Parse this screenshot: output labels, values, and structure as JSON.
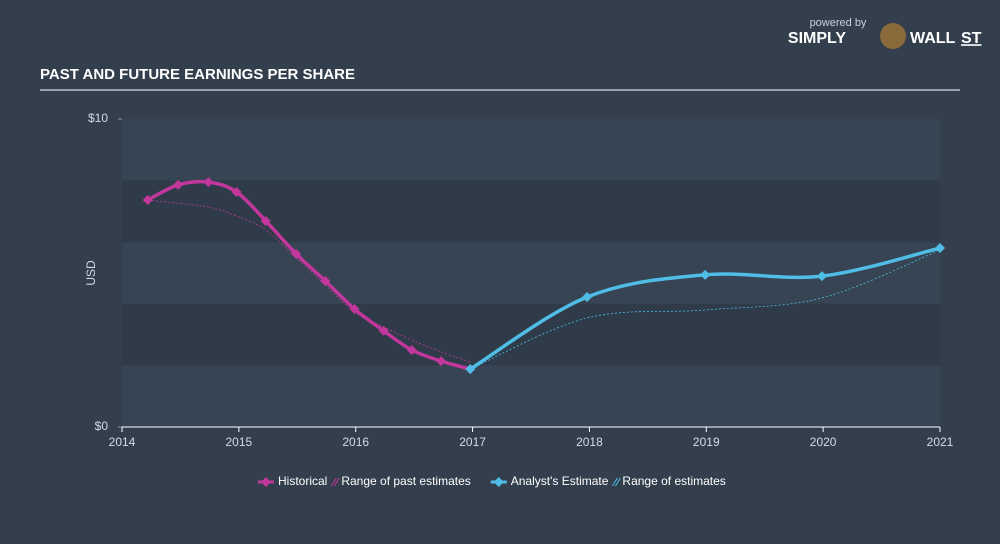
{
  "logo": {
    "powered_by": "powered by",
    "brand": "SIMPLY",
    "brand2": "WALL",
    "brand3": "ST"
  },
  "chart_data": {
    "type": "line",
    "title": "PAST AND FUTURE EARNINGS PER SHARE",
    "y_label": "USD",
    "xlim": [
      2014,
      2021
    ],
    "xticks": [
      2014,
      2015,
      2016,
      2017,
      2018,
      2019,
      2020,
      2021
    ],
    "ylim": [
      0,
      10
    ],
    "yticks": [
      {
        "value": 0,
        "label": "$0"
      },
      {
        "value": 10,
        "label": "$10"
      }
    ],
    "series": [
      {
        "name": "Historical",
        "color": "#c2379c",
        "style": "solid",
        "markers": true,
        "x": [
          2014.22,
          2014.48,
          2014.74,
          2014.98,
          2015.23,
          2015.49,
          2015.74,
          2015.99,
          2016.24,
          2016.48,
          2016.73,
          2016.98
        ],
        "values": [
          7.37,
          7.86,
          7.95,
          7.63,
          6.69,
          5.62,
          4.74,
          3.83,
          3.12,
          2.5,
          2.14,
          1.88
        ]
      },
      {
        "name": "Range of past estimates",
        "color": "#c2379c",
        "style": "dashed",
        "markers": false,
        "x": [
          2014.22,
          2014.74,
          2014.98,
          2015.23,
          2015.49,
          2015.74,
          2015.99,
          2016.24,
          2016.48,
          2016.73,
          2016.98
        ],
        "values": [
          7.37,
          7.14,
          6.85,
          6.4,
          5.49,
          4.61,
          3.73,
          3.25,
          2.82,
          2.44,
          2.11
        ]
      },
      {
        "name": "Analyst's Estimate",
        "color": "#4fbde6",
        "style": "solid",
        "markers": true,
        "x": [
          2016.98,
          2017.98,
          2018.99,
          2019.99,
          2021.0
        ],
        "values": [
          1.88,
          4.22,
          4.94,
          4.9,
          5.81
        ]
      },
      {
        "name": "Range of estimates",
        "color": "#4fbde6",
        "style": "dashed",
        "markers": false,
        "x": [
          2016.98,
          2017.98,
          2018.99,
          2019.99,
          2021.0
        ],
        "values": [
          1.88,
          3.54,
          3.8,
          4.19,
          5.75
        ]
      }
    ]
  }
}
